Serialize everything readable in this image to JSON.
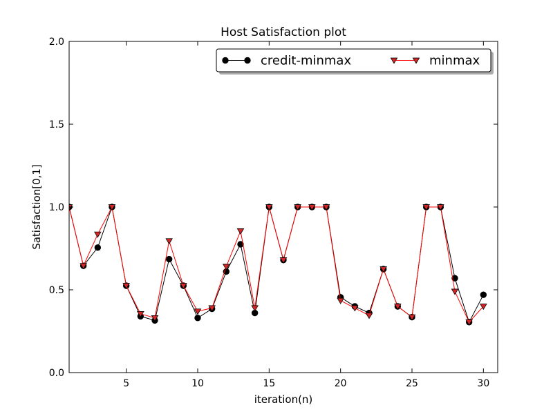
{
  "chart_data": {
    "type": "line",
    "title": "Host Satisfaction plot",
    "xlabel": "iteration(n)",
    "ylabel": "Satisfaction[0,1]",
    "xlim": [
      1,
      31
    ],
    "ylim": [
      0.0,
      2.0
    ],
    "xticks": [
      5,
      10,
      15,
      20,
      25,
      30
    ],
    "xtick_labels": [
      "5",
      "10",
      "15",
      "20",
      "25",
      "30"
    ],
    "yticks": [
      0.0,
      0.5,
      1.0,
      1.5,
      2.0
    ],
    "ytick_labels": [
      "0.0",
      "0.5",
      "1.0",
      "1.5",
      "2.0"
    ],
    "grid": false,
    "legend_position": "top-right",
    "x": [
      1,
      2,
      3,
      4,
      5,
      6,
      7,
      8,
      9,
      10,
      11,
      12,
      13,
      14,
      15,
      16,
      17,
      18,
      19,
      20,
      21,
      22,
      23,
      24,
      25,
      26,
      27,
      28,
      29,
      30
    ],
    "series": [
      {
        "name": "credit-minmax",
        "color": "#000000",
        "marker": "circle",
        "values": [
          1.0,
          0.645,
          0.755,
          1.0,
          0.525,
          0.34,
          0.315,
          0.685,
          0.525,
          0.33,
          0.385,
          0.61,
          0.775,
          0.36,
          1.0,
          0.68,
          1.0,
          1.0,
          1.0,
          0.455,
          0.4,
          0.36,
          0.625,
          0.4,
          0.335,
          1.0,
          1.0,
          0.57,
          0.305,
          0.47
        ]
      },
      {
        "name": "minmax",
        "color": "#d62728",
        "line_color": "#ff0000",
        "marker": "triangle-down",
        "values": [
          1.0,
          0.645,
          0.835,
          1.0,
          0.525,
          0.355,
          0.33,
          0.795,
          0.525,
          0.37,
          0.39,
          0.64,
          0.855,
          0.39,
          1.0,
          0.68,
          1.0,
          1.0,
          1.0,
          0.435,
          0.39,
          0.345,
          0.625,
          0.4,
          0.335,
          1.0,
          1.0,
          0.49,
          0.305,
          0.4
        ]
      }
    ]
  }
}
